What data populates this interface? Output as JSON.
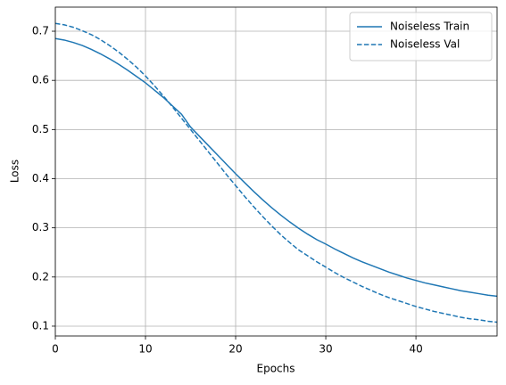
{
  "chart_data": {
    "type": "line",
    "xlabel": "Epochs",
    "ylabel": "Loss",
    "x": [
      0,
      1,
      2,
      3,
      4,
      5,
      6,
      7,
      8,
      9,
      10,
      11,
      12,
      13,
      14,
      15,
      16,
      17,
      18,
      19,
      20,
      21,
      22,
      23,
      24,
      25,
      26,
      27,
      28,
      29,
      30,
      31,
      32,
      33,
      34,
      35,
      36,
      37,
      38,
      39,
      40,
      41,
      42,
      43,
      44,
      45,
      46,
      47,
      48,
      49
    ],
    "series": [
      {
        "name": "Noiseless Train",
        "color": "#1f77b4",
        "linestyle": "solid",
        "values": [
          0.685,
          0.682,
          0.677,
          0.671,
          0.663,
          0.654,
          0.644,
          0.633,
          0.621,
          0.608,
          0.595,
          0.58,
          0.565,
          0.548,
          0.531,
          0.505,
          0.486,
          0.467,
          0.448,
          0.429,
          0.41,
          0.392,
          0.374,
          0.357,
          0.341,
          0.326,
          0.312,
          0.299,
          0.287,
          0.276,
          0.267,
          0.257,
          0.248,
          0.239,
          0.231,
          0.224,
          0.217,
          0.21,
          0.204,
          0.198,
          0.193,
          0.188,
          0.184,
          0.18,
          0.176,
          0.172,
          0.169,
          0.166,
          0.163,
          0.161
        ]
      },
      {
        "name": "Noiseless Val",
        "color": "#1f77b4",
        "linestyle": "dashed",
        "values": [
          0.716,
          0.713,
          0.708,
          0.701,
          0.693,
          0.683,
          0.671,
          0.658,
          0.643,
          0.627,
          0.609,
          0.589,
          0.568,
          0.546,
          0.523,
          0.5,
          0.477,
          0.454,
          0.431,
          0.408,
          0.386,
          0.364,
          0.343,
          0.323,
          0.304,
          0.286,
          0.27,
          0.255,
          0.243,
          0.231,
          0.22,
          0.209,
          0.199,
          0.19,
          0.181,
          0.173,
          0.165,
          0.158,
          0.152,
          0.146,
          0.14,
          0.135,
          0.13,
          0.126,
          0.122,
          0.118,
          0.115,
          0.113,
          0.11,
          0.108
        ]
      }
    ],
    "xlim": [
      0,
      49
    ],
    "xticks": [
      0,
      10,
      20,
      30,
      40
    ],
    "ylim": [
      0.08,
      0.749
    ],
    "yticks": [
      0.1,
      0.2,
      0.3,
      0.4,
      0.5,
      0.6,
      0.7
    ],
    "grid": true,
    "legend": "upper right"
  }
}
